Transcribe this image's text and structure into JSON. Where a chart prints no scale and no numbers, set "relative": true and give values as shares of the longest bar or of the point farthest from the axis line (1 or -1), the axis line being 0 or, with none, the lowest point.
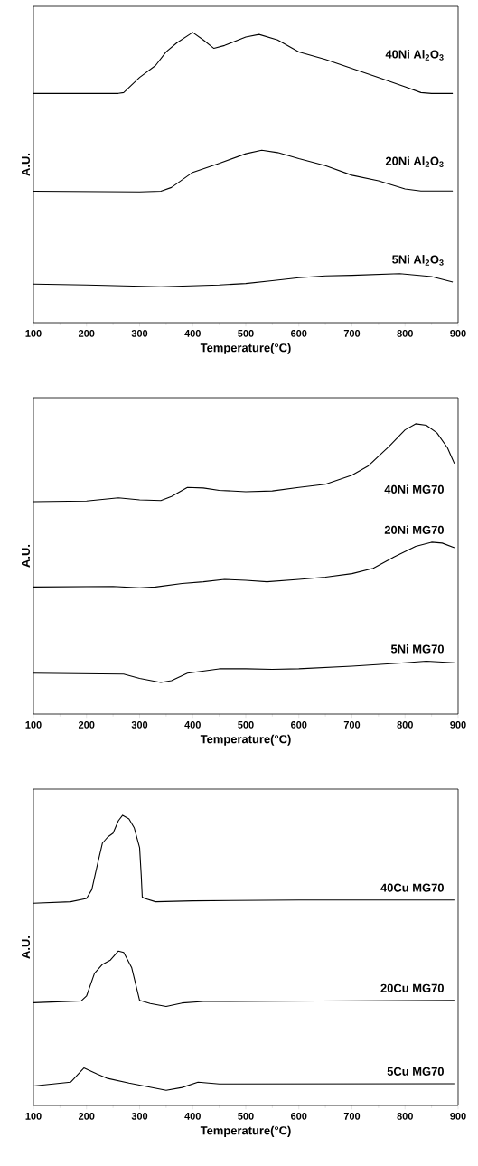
{
  "chart_data": [
    {
      "type": "line",
      "xlabel": "Temperature(°C)",
      "ylabel": "A.U.",
      "relative": true,
      "xlim": [
        100,
        900
      ],
      "xticks": [
        100,
        200,
        300,
        400,
        500,
        600,
        700,
        800,
        900
      ],
      "series": [
        {
          "name": "40Ni Al$_{2}$O$_{3}$",
          "color": "#000000",
          "x": [
            100,
            200,
            260,
            270,
            300,
            330,
            350,
            370,
            400,
            420,
            440,
            460,
            500,
            525,
            560,
            600,
            650,
            700,
            750,
            800,
            830,
            850,
            890
          ],
          "values": [
            0.79,
            0.79,
            0.79,
            0.793,
            0.845,
            0.886,
            0.933,
            0.964,
            1.0,
            0.974,
            0.945,
            0.955,
            0.984,
            0.993,
            0.974,
            0.933,
            0.907,
            0.876,
            0.845,
            0.813,
            0.793,
            0.79,
            0.79
          ]
        },
        {
          "name": "20Ni Al$_{2}$O$_{3}$",
          "color": "#000000",
          "x": [
            100,
            300,
            340,
            360,
            400,
            450,
            500,
            530,
            560,
            600,
            650,
            700,
            750,
            800,
            830,
            890
          ],
          "values": [
            0.453,
            0.451,
            0.453,
            0.466,
            0.518,
            0.549,
            0.582,
            0.594,
            0.586,
            0.565,
            0.541,
            0.508,
            0.489,
            0.461,
            0.454,
            0.454
          ]
        },
        {
          "name": "5Ni Al$_{2}$O$_{3}$",
          "color": "#000000",
          "x": [
            100,
            200,
            340,
            450,
            500,
            550,
            600,
            650,
            700,
            790,
            850,
            890
          ],
          "values": [
            0.133,
            0.13,
            0.124,
            0.13,
            0.135,
            0.145,
            0.155,
            0.161,
            0.163,
            0.169,
            0.159,
            0.14
          ]
        }
      ]
    },
    {
      "type": "line",
      "xlabel": "Temperature(°C)",
      "ylabel": "A.U.",
      "relative": true,
      "xlim": [
        100,
        900
      ],
      "xticks": [
        100,
        200,
        300,
        400,
        500,
        600,
        700,
        800,
        900
      ],
      "series": [
        {
          "name": "40Ni MG70",
          "color": "#000000",
          "x": [
            100,
            200,
            260,
            300,
            340,
            360,
            390,
            420,
            450,
            500,
            550,
            600,
            650,
            700,
            730,
            770,
            800,
            820,
            840,
            860,
            880,
            893
          ],
          "values": [
            0.732,
            0.734,
            0.745,
            0.738,
            0.736,
            0.75,
            0.781,
            0.779,
            0.771,
            0.766,
            0.769,
            0.781,
            0.792,
            0.823,
            0.854,
            0.922,
            0.979,
            1.0,
            0.995,
            0.969,
            0.917,
            0.863
          ]
        },
        {
          "name": "20Ni MG70",
          "color": "#000000",
          "x": [
            100,
            250,
            300,
            330,
            380,
            420,
            460,
            500,
            540,
            600,
            650,
            700,
            740,
            780,
            820,
            850,
            870,
            893
          ],
          "values": [
            0.438,
            0.44,
            0.435,
            0.438,
            0.45,
            0.456,
            0.464,
            0.461,
            0.456,
            0.464,
            0.472,
            0.484,
            0.502,
            0.542,
            0.578,
            0.592,
            0.589,
            0.573
          ]
        },
        {
          "name": "5Ni MG70",
          "color": "#000000",
          "x": [
            100,
            270,
            300,
            340,
            360,
            390,
            450,
            500,
            550,
            600,
            700,
            800,
            840,
            893
          ],
          "values": [
            0.141,
            0.138,
            0.123,
            0.109,
            0.115,
            0.141,
            0.156,
            0.156,
            0.154,
            0.156,
            0.165,
            0.177,
            0.182,
            0.177
          ]
        }
      ]
    },
    {
      "type": "line",
      "xlabel": "Temperature(°C)",
      "ylabel": "A.U.",
      "relative": true,
      "xlim": [
        100,
        900
      ],
      "xticks": [
        100,
        200,
        300,
        400,
        500,
        600,
        700,
        800,
        900
      ],
      "series": [
        {
          "name": "40Cu MG70",
          "color": "#000000",
          "x": [
            100,
            170,
            200,
            210,
            220,
            230,
            240,
            250,
            260,
            268,
            280,
            290,
            300,
            303,
            305,
            310,
            330,
            400,
            600,
            893
          ],
          "values": [
            0.697,
            0.702,
            0.713,
            0.744,
            0.826,
            0.904,
            0.925,
            0.938,
            0.981,
            1.0,
            0.987,
            0.956,
            0.888,
            0.795,
            0.718,
            0.713,
            0.702,
            0.705,
            0.708,
            0.708
          ]
        },
        {
          "name": "20Cu MG70",
          "color": "#000000",
          "x": [
            100,
            190,
            200,
            215,
            230,
            245,
            260,
            270,
            285,
            300,
            320,
            350,
            380,
            420,
            893
          ],
          "values": [
            0.354,
            0.36,
            0.377,
            0.455,
            0.486,
            0.501,
            0.532,
            0.527,
            0.475,
            0.362,
            0.351,
            0.341,
            0.353,
            0.358,
            0.362
          ]
        },
        {
          "name": "5Cu MG70",
          "color": "#000000",
          "x": [
            100,
            170,
            195,
            220,
            240,
            280,
            350,
            380,
            410,
            450,
            893
          ],
          "values": [
            0.067,
            0.08,
            0.129,
            0.108,
            0.093,
            0.077,
            0.052,
            0.062,
            0.08,
            0.074,
            0.075
          ]
        }
      ]
    }
  ]
}
